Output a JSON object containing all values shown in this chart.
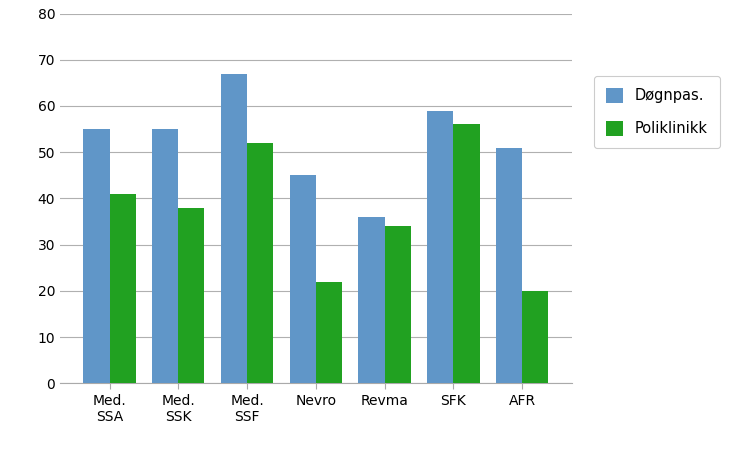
{
  "categories": [
    "Med.\nSSA",
    "Med.\nSSK",
    "Med.\nSSF",
    "Nevro",
    "Revma",
    "SFK",
    "AFR"
  ],
  "dognpas": [
    55,
    55,
    67,
    45,
    36,
    59,
    51
  ],
  "poliklinikk": [
    41,
    38,
    52,
    22,
    34,
    56,
    20
  ],
  "bar_color_blue": "#6096C8",
  "bar_color_green": "#21A121",
  "legend_labels": [
    "Døgnpas.",
    "Poliklinikk"
  ],
  "ylim": [
    0,
    80
  ],
  "yticks": [
    0,
    10,
    20,
    30,
    40,
    50,
    60,
    70,
    80
  ],
  "background_color": "#ffffff",
  "grid_color": "#b0b0b0",
  "bar_width": 0.38
}
